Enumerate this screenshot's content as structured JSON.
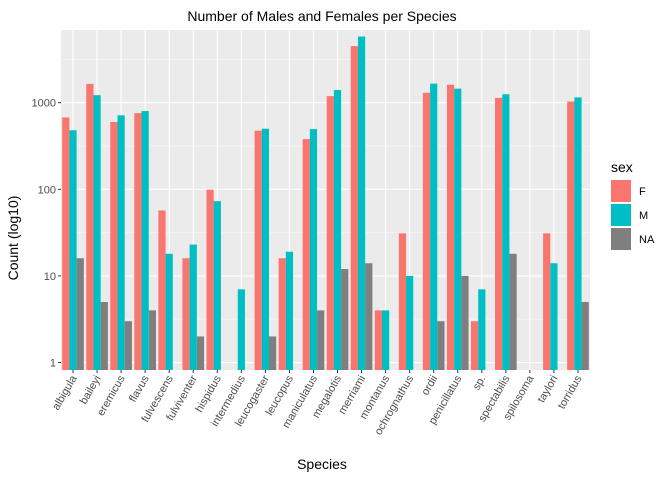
{
  "chart_data": {
    "type": "bar",
    "title": "Number of Males and Females per Species",
    "xlabel": "Species",
    "ylabel": "Count (log10)",
    "y_scale": "log10",
    "ylim": [
      0.82,
      6900
    ],
    "y_ticks": [
      1,
      10,
      100,
      1000
    ],
    "y_tick_labels": [
      "1",
      "10",
      "100",
      "1000"
    ],
    "grid": true,
    "legend_title": "sex",
    "legend_position": "right",
    "categories": [
      "albigula",
      "baileyi",
      "eremicus",
      "flavus",
      "fulvescens",
      "fulviventer",
      "hispidus",
      "intermedius",
      "leucogaster",
      "leucopus",
      "maniculatus",
      "megalotis",
      "merriami",
      "montanus",
      "ochrognathus",
      "ordii",
      "penicillatus",
      "sp.",
      "spectabilis",
      "spilosoma",
      "taylori",
      "torridus"
    ],
    "series": [
      {
        "name": "F",
        "color": "#F8766D",
        "values": [
          675,
          1646,
          598,
          757,
          57,
          16,
          99,
          null,
          475,
          16,
          380,
          1190,
          4500,
          4,
          31,
          1300,
          1610,
          3,
          1135,
          null,
          31,
          1030
        ]
      },
      {
        "name": "M",
        "color": "#00BFC4",
        "values": [
          480,
          1220,
          715,
          800,
          18,
          23,
          73,
          7,
          500,
          19,
          495,
          1400,
          5800,
          4,
          10,
          1660,
          1450,
          7,
          1250,
          null,
          14,
          1150
        ]
      },
      {
        "name": "NA",
        "color": "#7F7F7F",
        "values": [
          16,
          5,
          3,
          4,
          null,
          2,
          null,
          null,
          2,
          null,
          4,
          12,
          14,
          null,
          null,
          3,
          10,
          null,
          18,
          null,
          null,
          5
        ]
      }
    ]
  }
}
